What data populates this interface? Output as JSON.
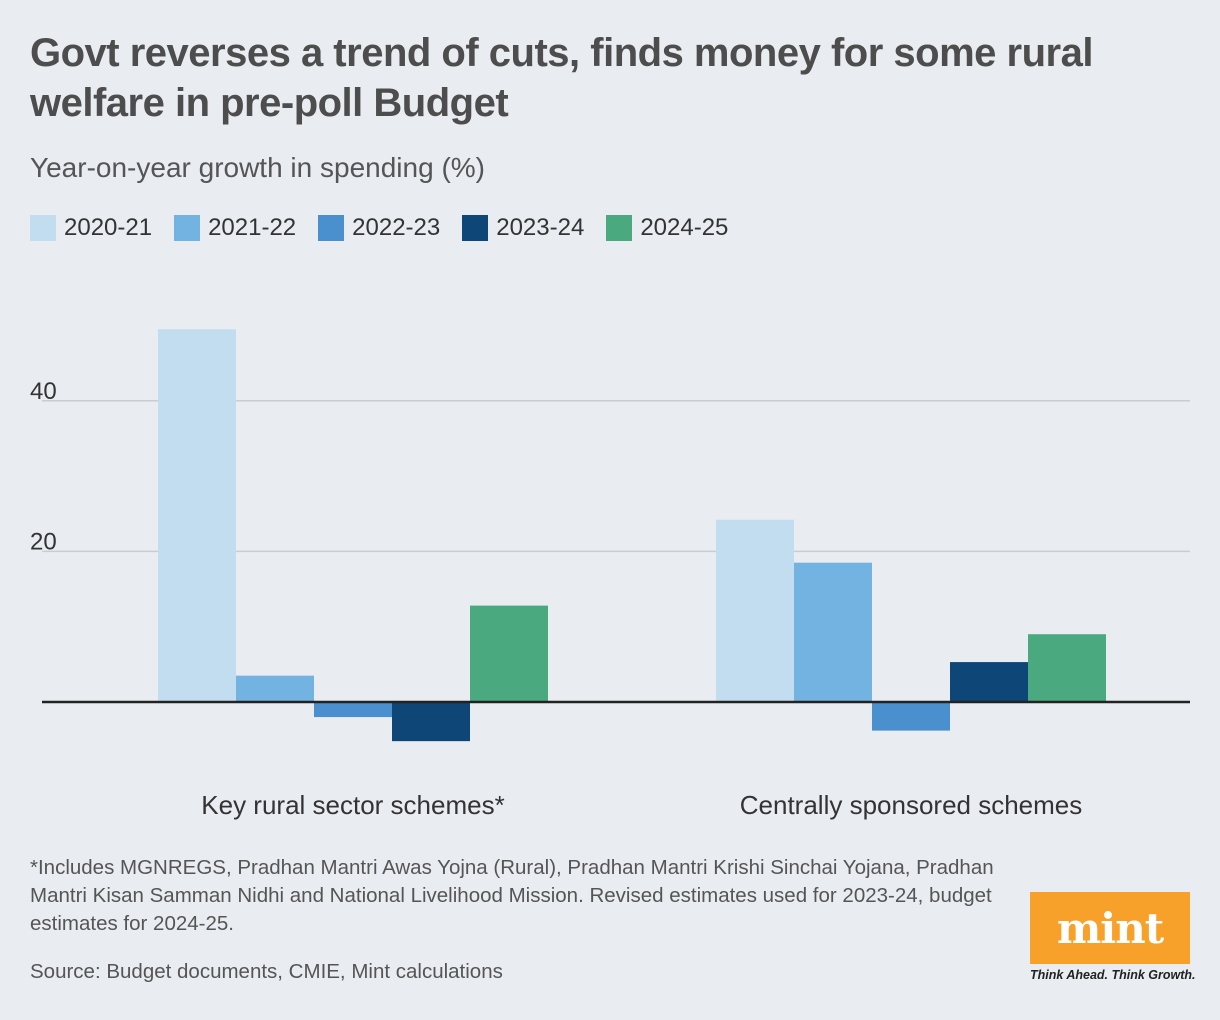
{
  "header": {
    "title": "Govt reverses a trend of cuts, finds money for some rural welfare in pre-poll Budget",
    "subtitle": "Year-on-year growth in spending (%)"
  },
  "legend": [
    {
      "label": "2020-21",
      "color": "#c2ddef"
    },
    {
      "label": "2021-22",
      "color": "#73b3e1"
    },
    {
      "label": "2022-23",
      "color": "#4a90cf"
    },
    {
      "label": "2023-24",
      "color": "#0d4677"
    },
    {
      "label": "2024-25",
      "color": "#4aa97f"
    }
  ],
  "chart_data": {
    "type": "bar",
    "categories": [
      "Key rural sector schemes*",
      "Centrally sponsored schemes"
    ],
    "series": [
      {
        "name": "2020-21",
        "values": [
          49.5,
          24.2
        ],
        "color": "#c2ddef"
      },
      {
        "name": "2021-22",
        "values": [
          3.5,
          18.5
        ],
        "color": "#73b3e1"
      },
      {
        "name": "2022-23",
        "values": [
          -2.0,
          -3.8
        ],
        "color": "#4a90cf"
      },
      {
        "name": "2023-24",
        "values": [
          -5.2,
          5.3
        ],
        "color": "#0d4677"
      },
      {
        "name": "2024-25",
        "values": [
          12.8,
          9.0
        ],
        "color": "#4aa97f"
      }
    ],
    "yticks": [
      20,
      40
    ],
    "ylim": [
      -10,
      50
    ],
    "grid": true,
    "legend_position": "top-left"
  },
  "footer": {
    "footnote": "*Includes MGNREGS, Pradhan Mantri Awas Yojna (Rural), Pradhan Mantri Krishi Sinchai Yojana, Pradhan Mantri Kisan Samman Nidhi and National Livelihood Mission. Revised estimates used for 2023-24, budget estimates for 2024-25.",
    "source": "Source: Budget documents, CMIE, Mint calculations"
  },
  "logo": {
    "name": "mint",
    "tagline": "Think Ahead. Think Growth."
  }
}
